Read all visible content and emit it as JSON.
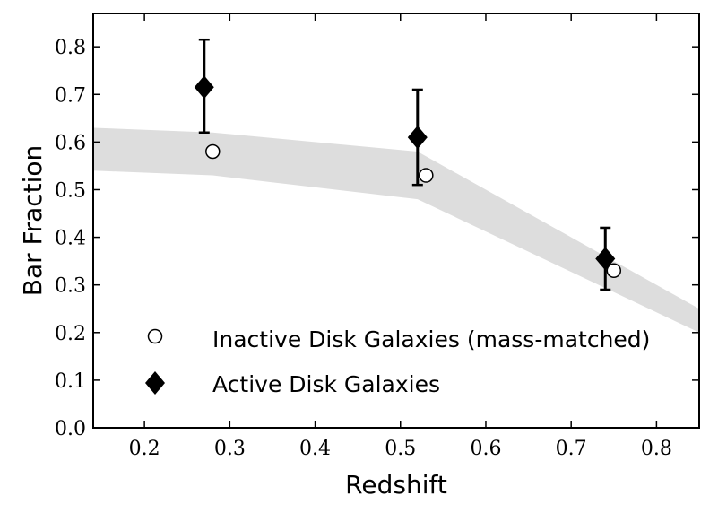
{
  "chart_data": {
    "type": "scatter",
    "xlabel": "Redshift",
    "ylabel": "Bar Fraction",
    "xlim": [
      0.14,
      0.85
    ],
    "ylim": [
      0.0,
      0.87
    ],
    "x_ticks": [
      "0.2",
      "0.3",
      "0.4",
      "0.5",
      "0.6",
      "0.7",
      "0.8"
    ],
    "y_ticks": [
      "0.0",
      "0.1",
      "0.2",
      "0.3",
      "0.4",
      "0.5",
      "0.6",
      "0.7",
      "0.8"
    ],
    "grid": false,
    "legend_position": "bottom-left",
    "band": {
      "color": "#dddddd",
      "x": [
        0.14,
        0.28,
        0.52,
        0.85
      ],
      "upper": [
        0.63,
        0.62,
        0.58,
        0.25
      ],
      "lower": [
        0.54,
        0.53,
        0.48,
        0.2
      ]
    },
    "series": [
      {
        "name": "Inactive Disk Galaxies (mass-matched)",
        "marker": "circle",
        "color": "#ffffff",
        "points": [
          {
            "x": 0.28,
            "y": 0.58
          },
          {
            "x": 0.53,
            "y": 0.53
          },
          {
            "x": 0.75,
            "y": 0.33
          }
        ]
      },
      {
        "name": "Active Disk Galaxies",
        "marker": "diamond",
        "color": "#000000",
        "points": [
          {
            "x": 0.27,
            "y": 0.715,
            "err_low": 0.62,
            "err_high": 0.815
          },
          {
            "x": 0.52,
            "y": 0.61,
            "err_low": 0.51,
            "err_high": 0.71
          },
          {
            "x": 0.74,
            "y": 0.355,
            "err_low": 0.29,
            "err_high": 0.42
          }
        ]
      }
    ]
  }
}
